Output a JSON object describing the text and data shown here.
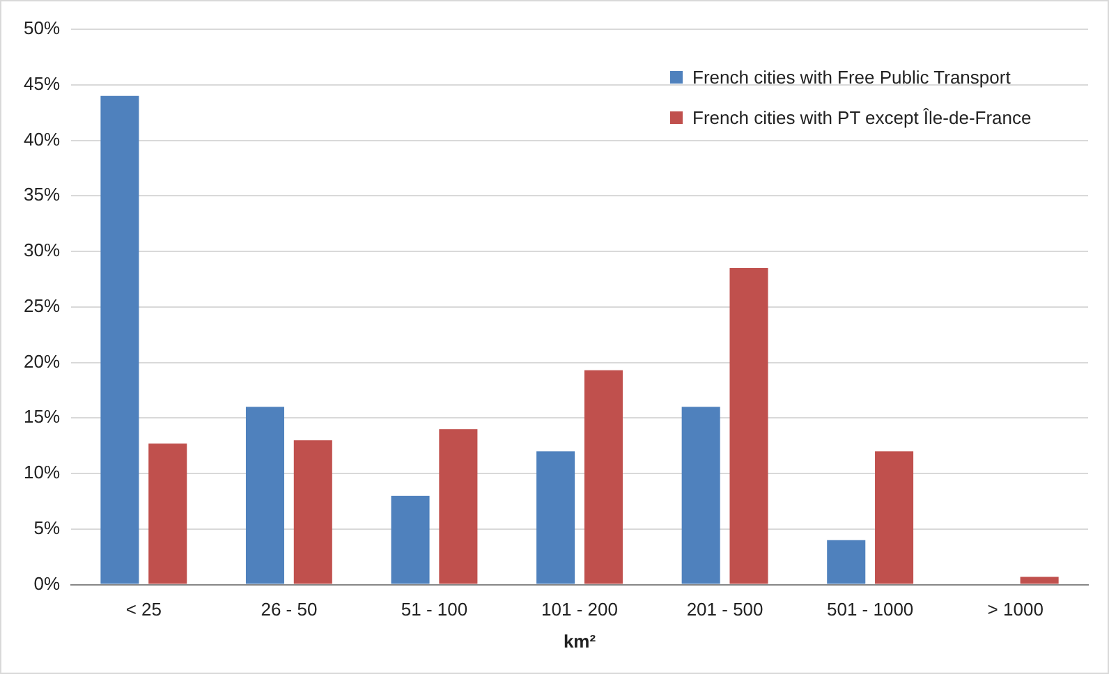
{
  "chart_data": {
    "type": "bar",
    "xlabel": "km²",
    "categories": [
      "< 25",
      "26 - 50",
      "51 - 100",
      "101 - 200",
      "201 - 500",
      "501 - 1000",
      "> 1000"
    ],
    "series": [
      {
        "name": "French cities with Free Public Transport",
        "color": "#4f81bd",
        "values": [
          44,
          16,
          8,
          12,
          16,
          4,
          0
        ]
      },
      {
        "name": "French cities with PT except Île-de-France",
        "color": "#c0504d",
        "values": [
          12.7,
          13,
          14,
          19.3,
          28.5,
          12,
          0.7
        ]
      }
    ],
    "ylim": [
      0,
      50
    ],
    "yticks": [
      {
        "value": 0,
        "label": "0%"
      },
      {
        "value": 5,
        "label": "5%"
      },
      {
        "value": 10,
        "label": "10%"
      },
      {
        "value": 15,
        "label": "15%"
      },
      {
        "value": 20,
        "label": "20%"
      },
      {
        "value": 25,
        "label": "25%"
      },
      {
        "value": 30,
        "label": "30%"
      },
      {
        "value": 35,
        "label": "35%"
      },
      {
        "value": 40,
        "label": "40%"
      },
      {
        "value": 45,
        "label": "45%"
      },
      {
        "value": 50,
        "label": "50%"
      }
    ],
    "grid": "y",
    "legend": "top right"
  }
}
